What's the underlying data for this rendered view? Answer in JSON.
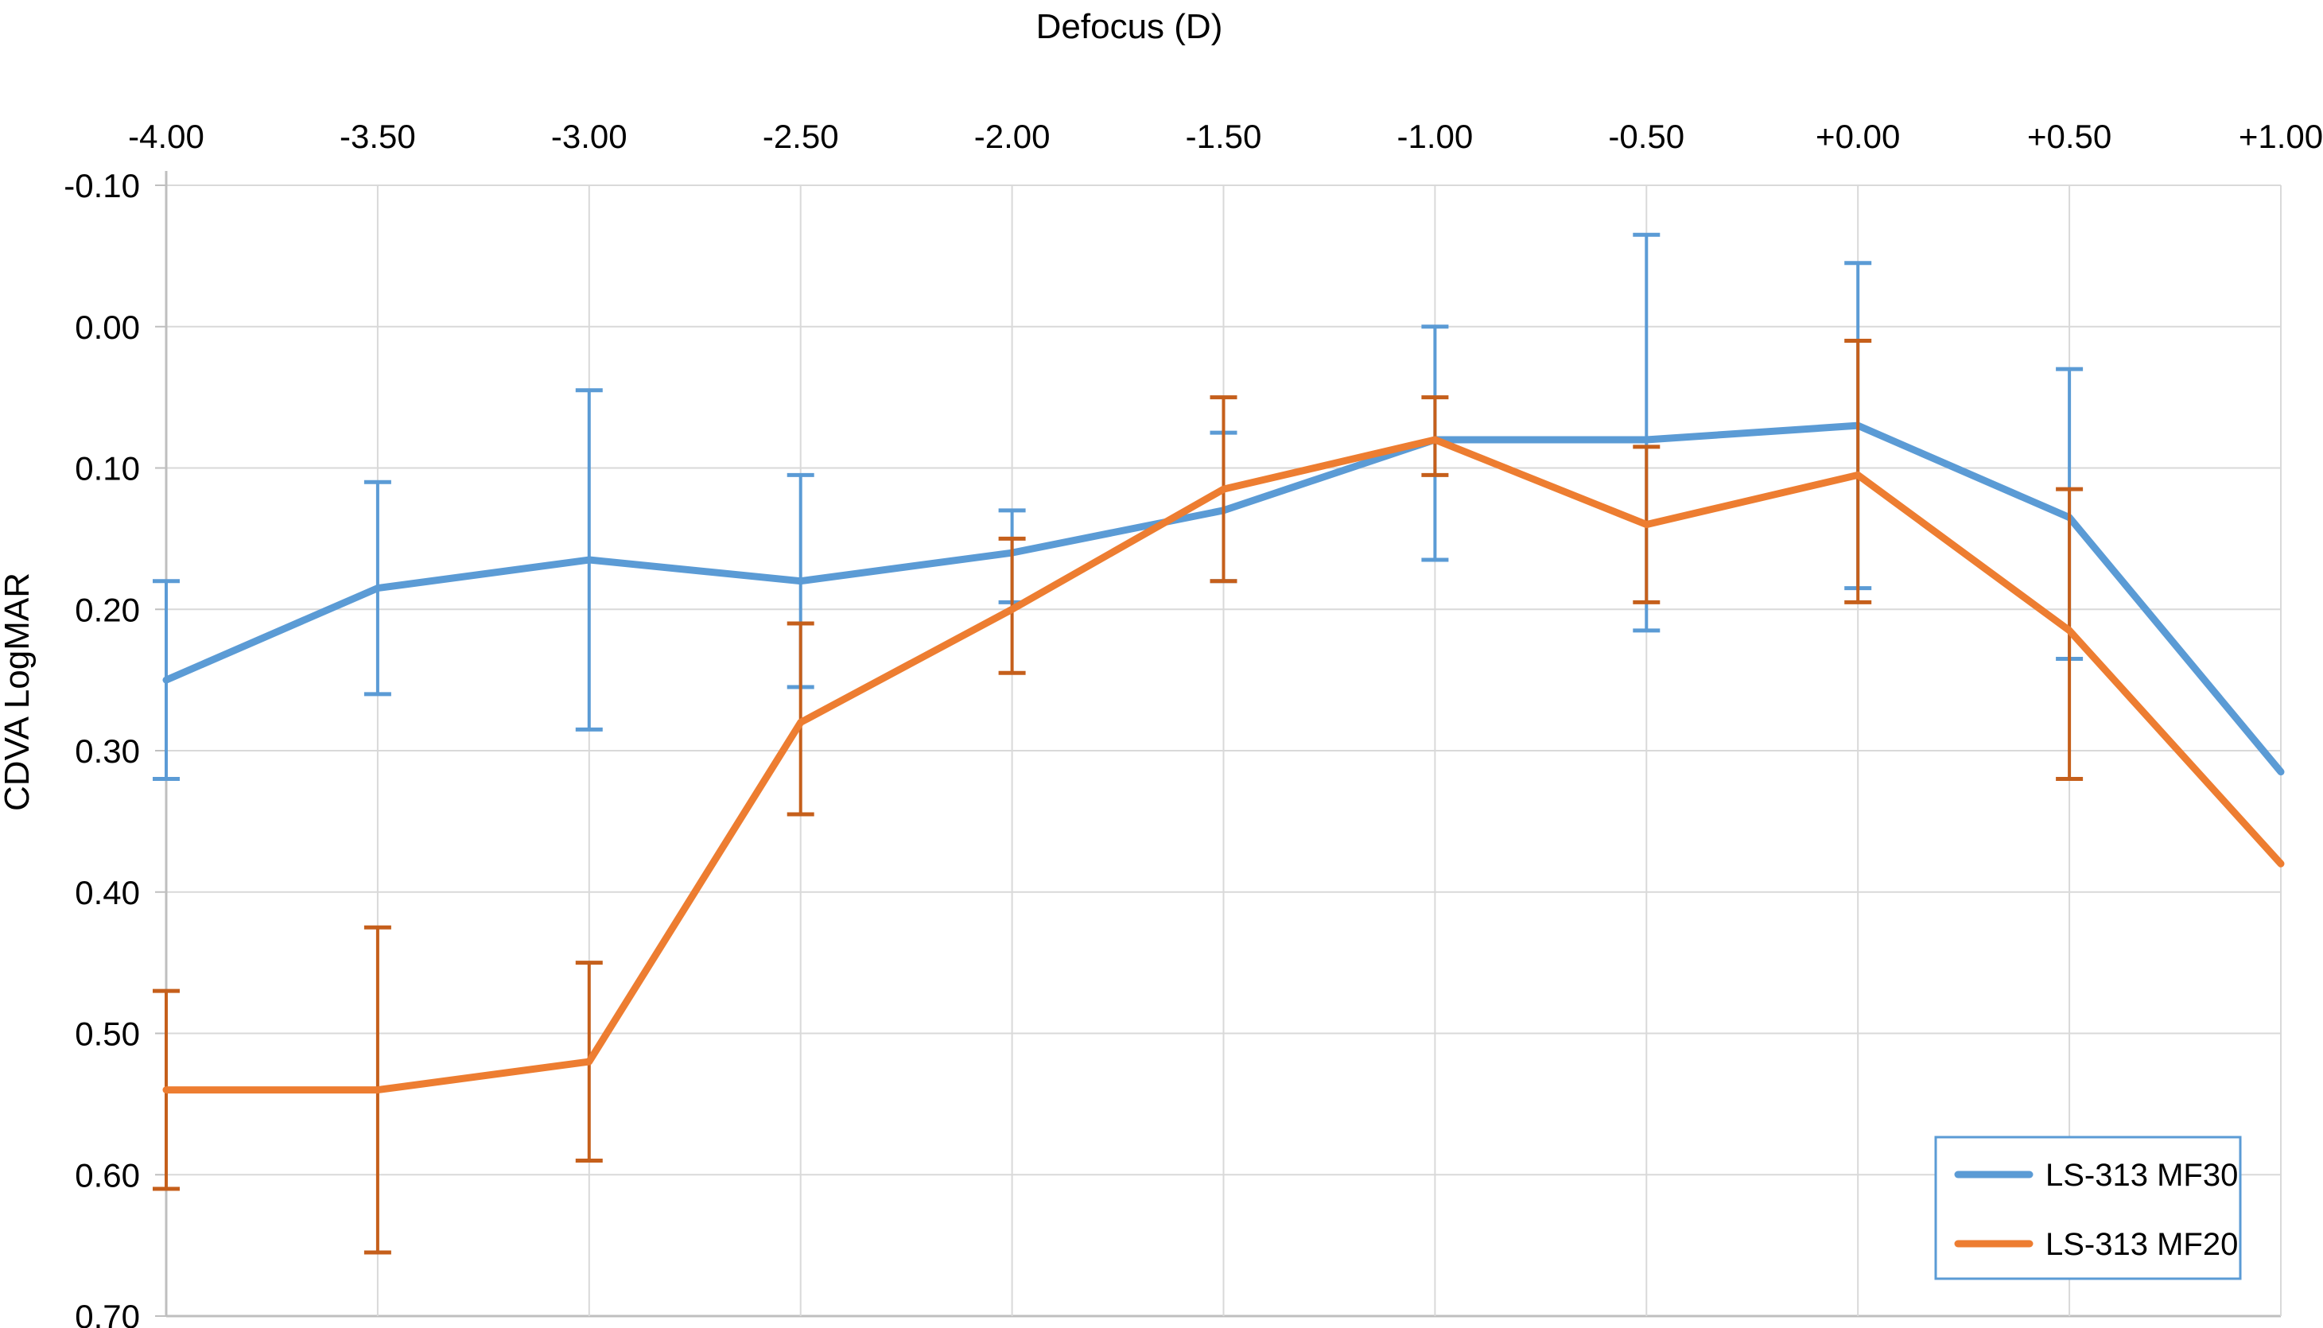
{
  "chart_data": {
    "type": "line",
    "title": "Defocus (D)",
    "xlabel": "Defocus (D)",
    "ylabel": "CDVA LogMAR",
    "x_axis_position": "top",
    "y_axis_inverted": true,
    "grid": true,
    "error_bars": true,
    "legend_position": "bottom-right",
    "xlim": [
      -4.0,
      1.0
    ],
    "ylim": [
      -0.1,
      0.7
    ],
    "x_values": [
      -4.0,
      -3.5,
      -3.0,
      -2.5,
      -2.0,
      -1.5,
      -1.0,
      -0.5,
      0.0,
      0.5,
      1.0
    ],
    "x_tick_labels": [
      "-4.00",
      "-3.50",
      "-3.00",
      "-2.50",
      "-2.00",
      "-1.50",
      "-1.00",
      "-0.50",
      "+0.00",
      "+0.50",
      "+1.00"
    ],
    "y_ticks": [
      -0.1,
      0.0,
      0.1,
      0.2,
      0.3,
      0.4,
      0.5,
      0.6,
      0.7
    ],
    "y_tick_labels": [
      "-0.10",
      "0.00",
      "0.10",
      "0.20",
      "0.30",
      "0.40",
      "0.50",
      "0.60",
      "0.70"
    ],
    "series": [
      {
        "name": "LS-313 MF30",
        "color": "#5B9BD5",
        "error_color": "#5B9BD5",
        "values": [
          0.25,
          0.185,
          0.165,
          0.18,
          0.16,
          0.13,
          0.08,
          0.08,
          0.07,
          0.135,
          0.315
        ],
        "error_low": [
          0.18,
          0.11,
          0.045,
          0.105,
          0.13,
          0.075,
          0.0,
          -0.065,
          -0.045,
          0.03,
          null
        ],
        "error_high": [
          0.32,
          0.26,
          0.285,
          0.255,
          0.195,
          0.18,
          0.165,
          0.215,
          0.185,
          0.235,
          null
        ]
      },
      {
        "name": "LS-313 MF20",
        "color": "#ED7D31",
        "error_color": "#C55F1B",
        "values": [
          0.54,
          0.54,
          0.52,
          0.28,
          0.2,
          0.115,
          0.08,
          0.14,
          0.105,
          0.215,
          0.38
        ],
        "error_low": [
          0.47,
          0.425,
          0.45,
          0.21,
          0.15,
          0.05,
          0.05,
          0.085,
          0.01,
          0.115,
          null
        ],
        "error_high": [
          0.61,
          0.655,
          0.59,
          0.345,
          0.245,
          0.18,
          0.105,
          0.195,
          0.195,
          0.32,
          null
        ]
      }
    ],
    "colors": {
      "background": "#FFFFFF",
      "gridline": "#D9D9D9",
      "axis_line": "#BFBFBF",
      "legend_border": "#5B9BD5",
      "text": "#000000"
    }
  }
}
